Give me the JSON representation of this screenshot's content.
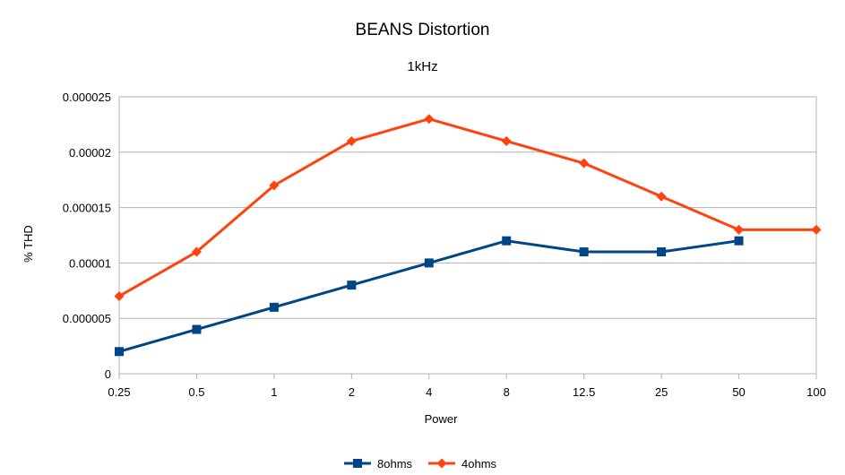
{
  "chart_data": {
    "type": "line",
    "title": "BEANS Distortion",
    "subtitle": "1kHz",
    "xlabel": "Power",
    "ylabel": "% THD",
    "categories": [
      "0.25",
      "0.5",
      "1",
      "2",
      "4",
      "8",
      "12.5",
      "25",
      "50",
      "100"
    ],
    "ylim": [
      0,
      2.5e-05
    ],
    "y_ticks": [
      "0",
      "0.000005",
      "0.00001",
      "0.000015",
      "0.00002",
      "0.000025"
    ],
    "grid": "horizontal",
    "legend_position": "bottom",
    "series": [
      {
        "name": "8ohms",
        "color": "#004586",
        "marker": "square",
        "values": [
          2e-06,
          4e-06,
          6e-06,
          8e-06,
          1e-05,
          1.2e-05,
          1.1e-05,
          1.1e-05,
          1.2e-05,
          null
        ]
      },
      {
        "name": "4ohms",
        "color": "#ff420e",
        "marker": "diamond",
        "values": [
          7e-06,
          1.1e-05,
          1.7e-05,
          2.1e-05,
          2.3e-05,
          2.1e-05,
          1.9e-05,
          1.6e-05,
          1.3e-05,
          1.3e-05
        ]
      }
    ]
  }
}
